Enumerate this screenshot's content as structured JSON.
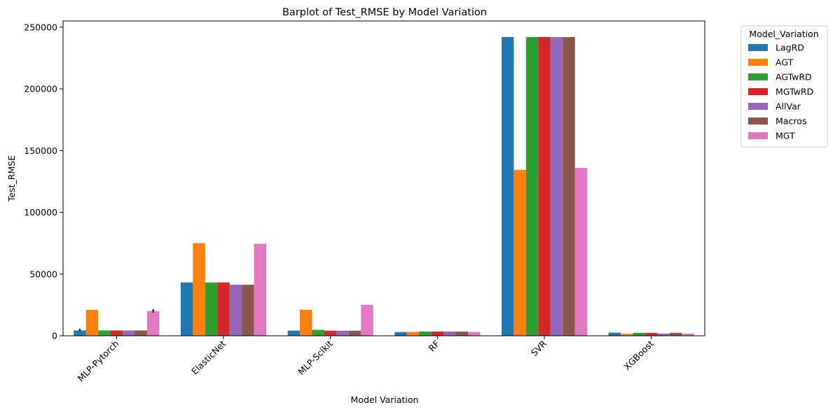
{
  "chart_data": {
    "type": "bar",
    "title": "Barplot of Test_RMSE by Model Variation",
    "xlabel": "Model Variation",
    "ylabel": "Test_RMSE",
    "ylim": [
      0,
      255000
    ],
    "yticks": [
      0,
      50000,
      100000,
      150000,
      200000,
      250000
    ],
    "grid": false,
    "legend": {
      "title": "Model_Variation",
      "placement": "outside top-right"
    },
    "categories": [
      "MLP-Pytorch",
      "ElasticNet",
      "MLP-Scikit",
      "RF",
      "SVR",
      "XGBoost"
    ],
    "series": [
      {
        "name": "LagRD",
        "color": "#1f77b4",
        "values": [
          4300,
          43200,
          4200,
          3000,
          242000,
          2500
        ]
      },
      {
        "name": "AGT",
        "color": "#ff7f0e",
        "values": [
          21000,
          75000,
          21000,
          3100,
          134500,
          1600
        ]
      },
      {
        "name": "AGTwRD",
        "color": "#2ca02c",
        "values": [
          4300,
          43200,
          4800,
          3400,
          242000,
          2400
        ]
      },
      {
        "name": "MGTwRD",
        "color": "#d62728",
        "values": [
          4300,
          43200,
          4100,
          3400,
          242000,
          2400
        ]
      },
      {
        "name": "AllVar",
        "color": "#9467bd",
        "values": [
          4300,
          41300,
          4100,
          3400,
          242000,
          1800
        ]
      },
      {
        "name": "Macros",
        "color": "#8c564b",
        "values": [
          4300,
          41300,
          4100,
          3400,
          242000,
          2400
        ]
      },
      {
        "name": "MGT",
        "color": "#e377c2",
        "values": [
          20000,
          74500,
          25000,
          3100,
          136000,
          1700
        ]
      }
    ],
    "error_bars": [
      {
        "series": "LagRD",
        "category": "MLP-Pytorch",
        "low": 3500,
        "high": 5600
      },
      {
        "series": "MGT",
        "category": "MLP-Pytorch",
        "low": 18800,
        "high": 21500
      }
    ]
  }
}
